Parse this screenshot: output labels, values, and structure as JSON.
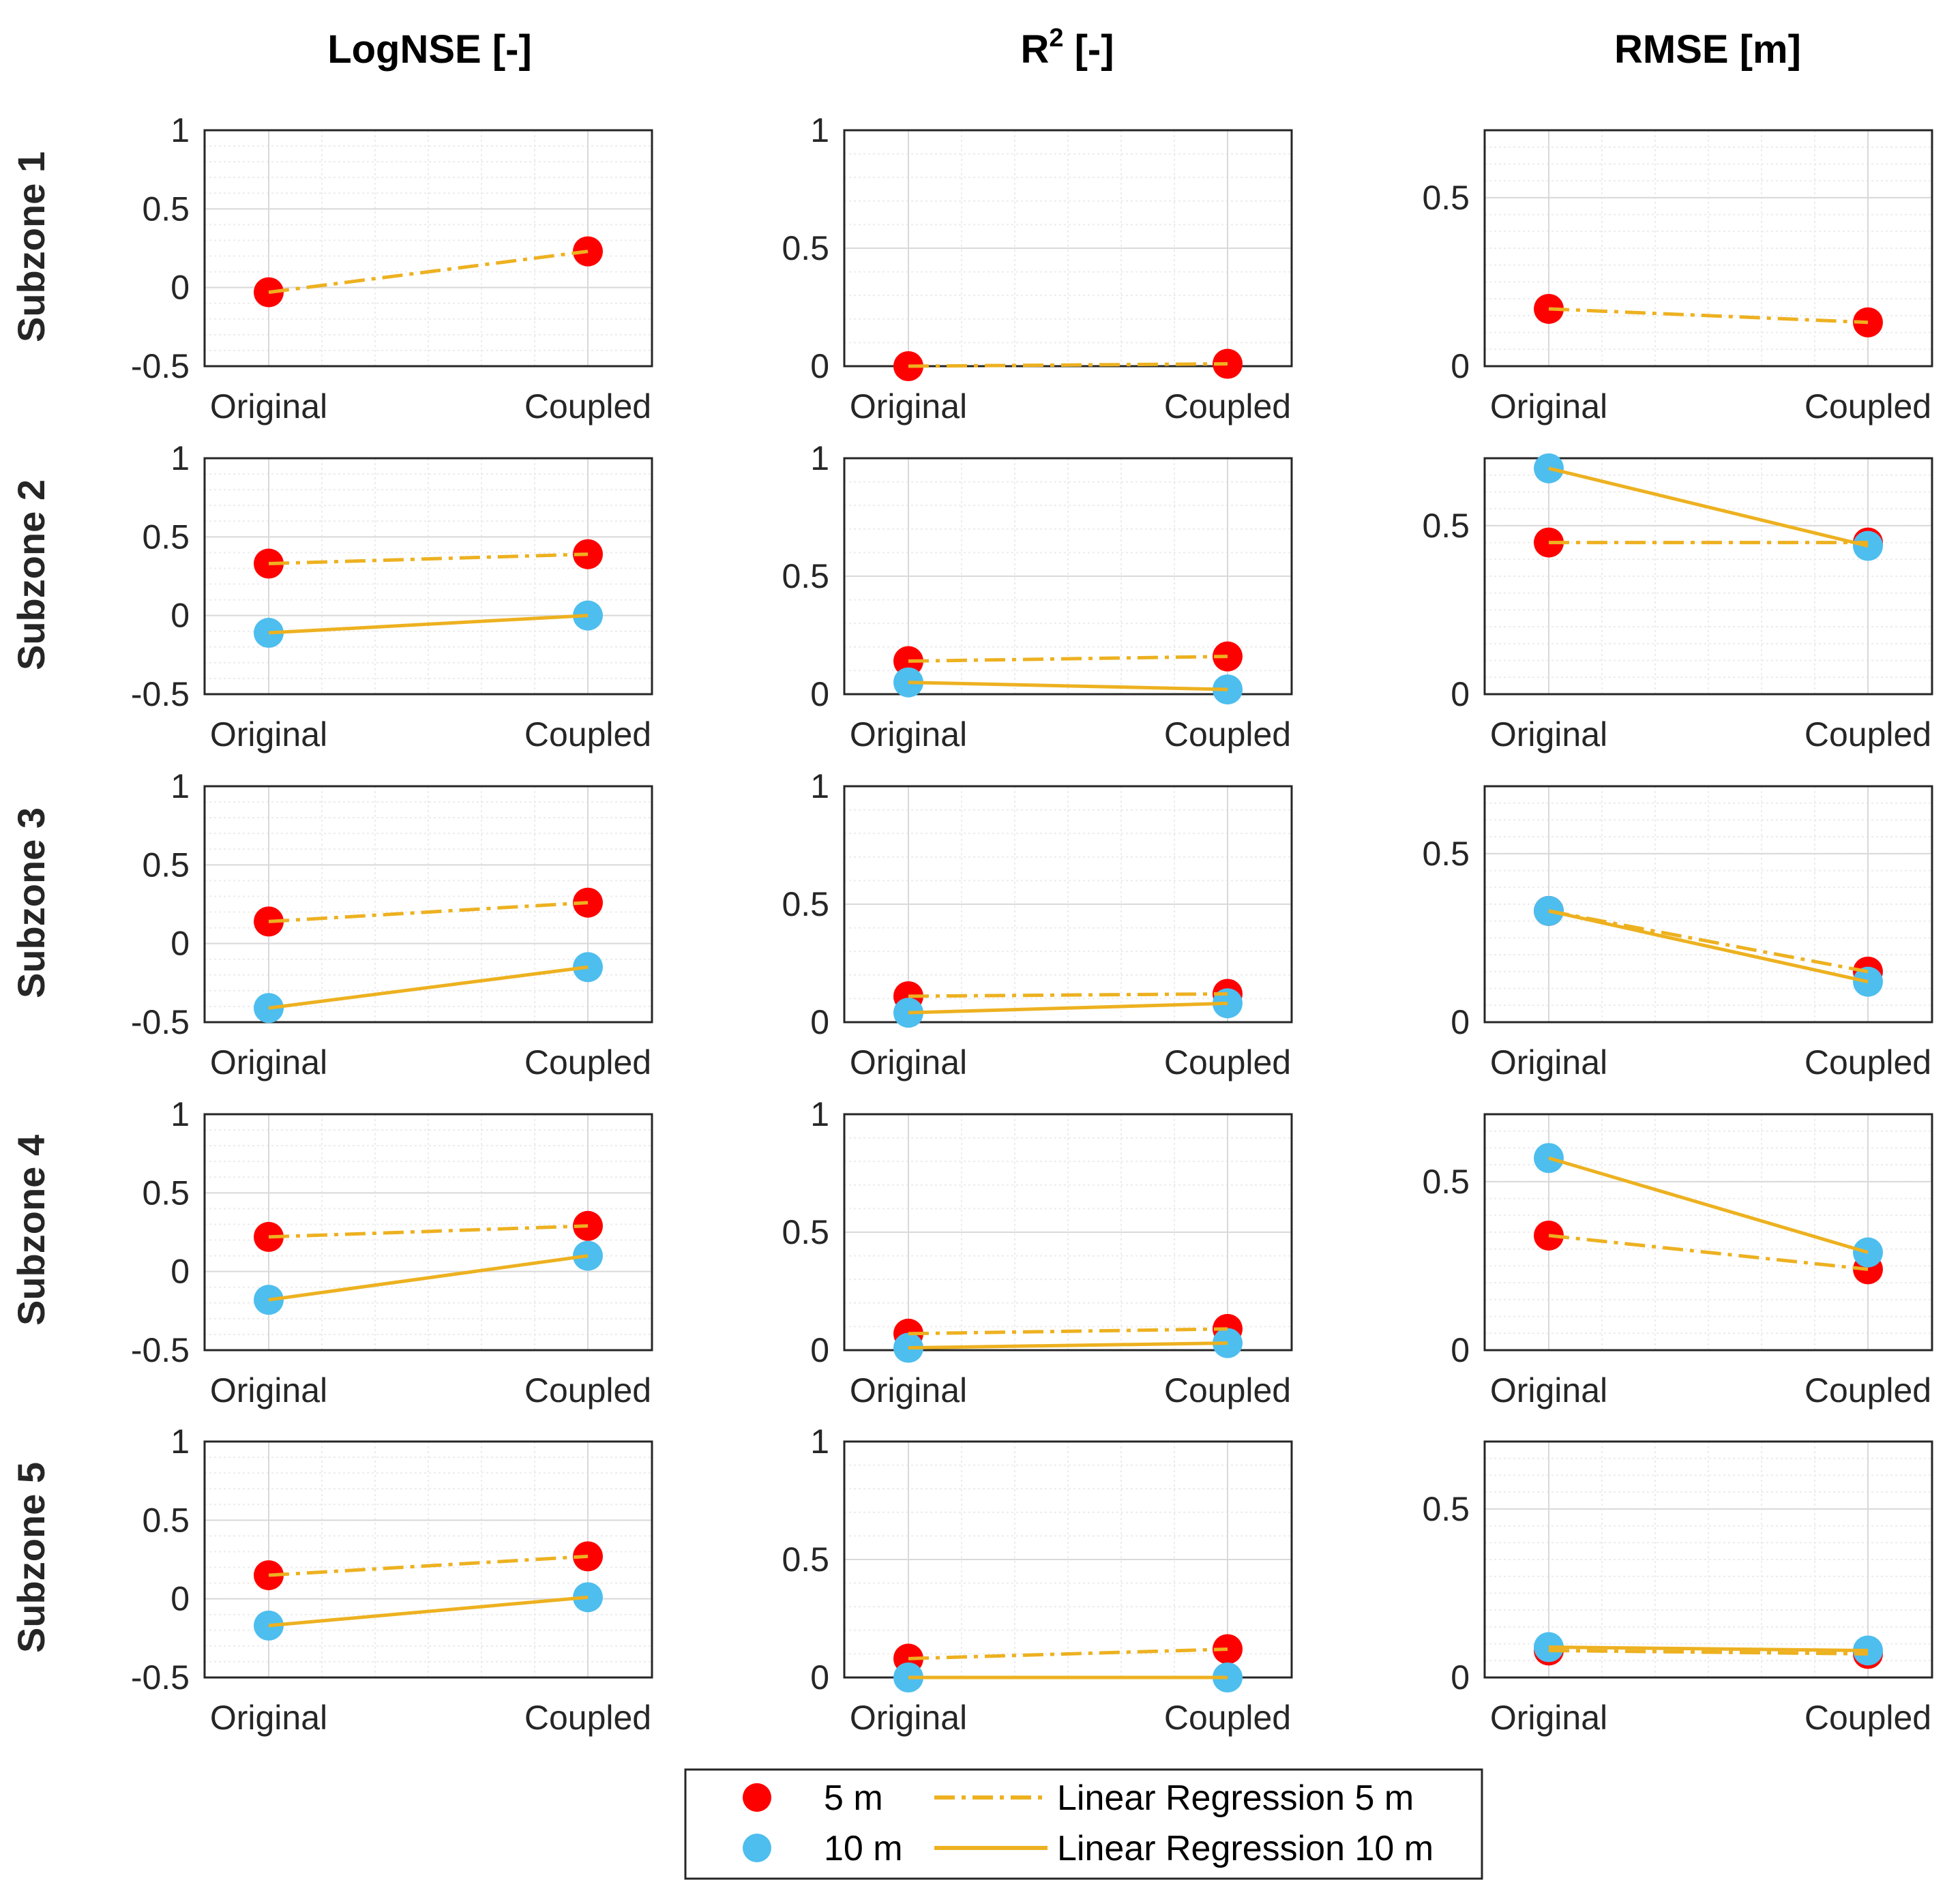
{
  "colors": {
    "m5": "#ff0000",
    "m10": "#4dbeee",
    "regression": "#edb120",
    "grid": "#d9d9d9",
    "axis": "#262626"
  },
  "chart_data": {
    "type": "scatter",
    "columns": [
      {
        "title": "LogNSE [-]",
        "ylim": [
          -0.5,
          1
        ],
        "yticks": [
          "-0.5",
          "0",
          "0.5",
          "1"
        ]
      },
      {
        "title_main": "R",
        "title_sup": "2",
        "title_rest": " [-]",
        "ylim": [
          0,
          1
        ],
        "yticks": [
          "0",
          "0.5",
          "1"
        ]
      },
      {
        "title": "RMSE [m]",
        "ylim": [
          0,
          0.7
        ],
        "yticks": [
          "0",
          "0.5"
        ]
      }
    ],
    "rows": [
      "Subzone 1",
      "Subzone 2",
      "Subzone 3",
      "Subzone 4",
      "Subzone 5"
    ],
    "categories": [
      "Original",
      "Coupled"
    ],
    "series_names": [
      "5 m",
      "10 m",
      "Linear Regression 5 m",
      "Linear Regression 10 m"
    ],
    "panels": [
      [
        {
          "m5": [
            -0.03,
            0.23
          ],
          "m10": null
        },
        {
          "m5": [
            0.0,
            0.01
          ],
          "m10": null
        },
        {
          "m5": [
            0.17,
            0.13
          ],
          "m10": null
        }
      ],
      [
        {
          "m5": [
            0.33,
            0.39
          ],
          "m10": [
            -0.11,
            0.0
          ]
        },
        {
          "m5": [
            0.14,
            0.16
          ],
          "m10": [
            0.05,
            0.02
          ]
        },
        {
          "m5": [
            0.45,
            0.45
          ],
          "m10": [
            0.67,
            0.44
          ]
        }
      ],
      [
        {
          "m5": [
            0.14,
            0.26
          ],
          "m10": [
            -0.41,
            -0.15
          ]
        },
        {
          "m5": [
            0.11,
            0.12
          ],
          "m10": [
            0.04,
            0.08
          ]
        },
        {
          "m5": [
            0.33,
            0.15
          ],
          "m10": [
            0.33,
            0.12
          ]
        }
      ],
      [
        {
          "m5": [
            0.22,
            0.29
          ],
          "m10": [
            -0.18,
            0.1
          ]
        },
        {
          "m5": [
            0.07,
            0.09
          ],
          "m10": [
            0.01,
            0.03
          ]
        },
        {
          "m5": [
            0.34,
            0.24
          ],
          "m10": [
            0.57,
            0.29
          ]
        }
      ],
      [
        {
          "m5": [
            0.15,
            0.27
          ],
          "m10": [
            -0.17,
            0.01
          ]
        },
        {
          "m5": [
            0.08,
            0.12
          ],
          "m10": [
            0.0,
            0.0
          ]
        },
        {
          "m5": [
            0.08,
            0.07
          ],
          "m10": [
            0.09,
            0.08
          ]
        }
      ]
    ]
  }
}
